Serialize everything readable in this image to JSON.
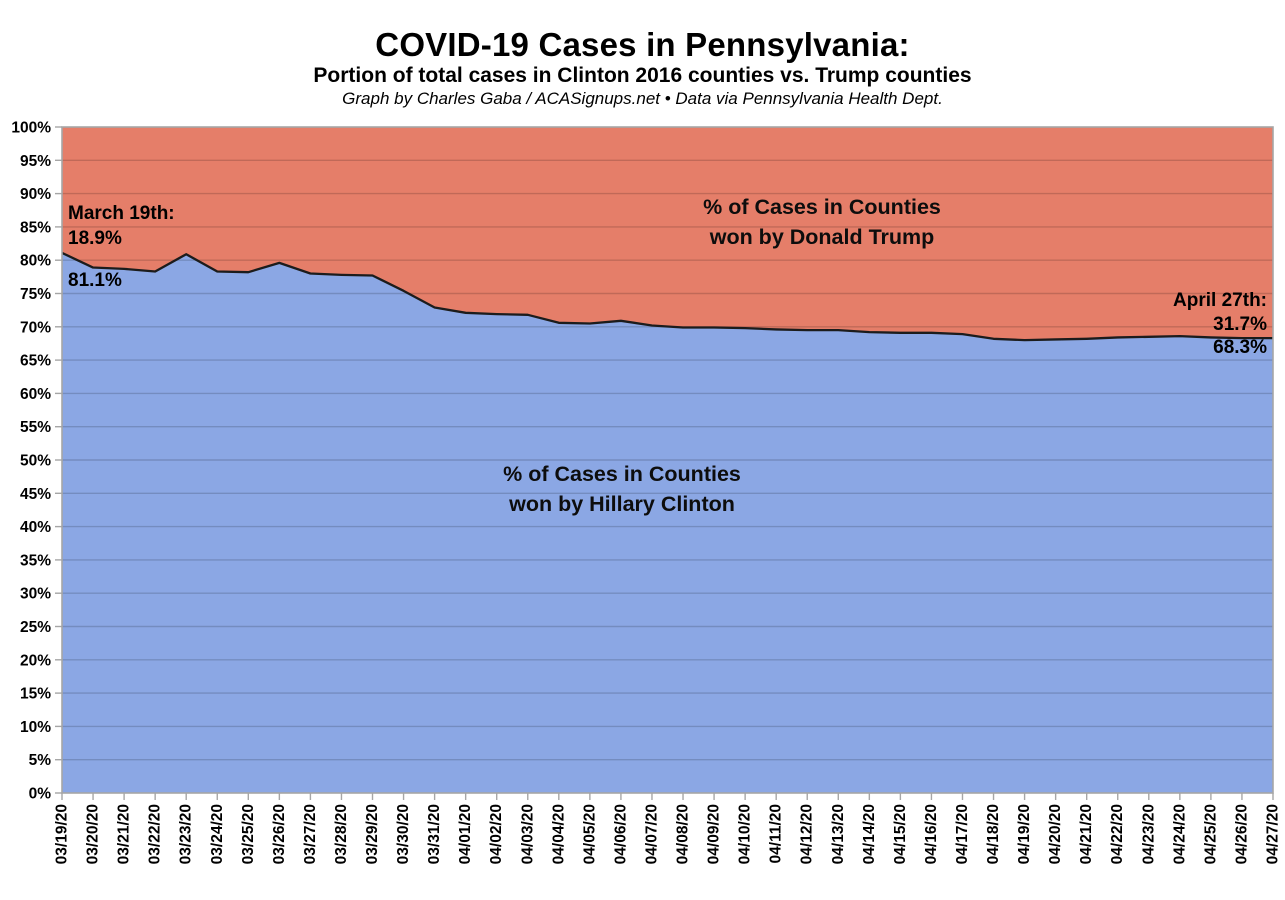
{
  "header": {
    "title": "COVID-19 Cases in Pennsylvania:",
    "subtitle": "Portion of total cases in Clinton 2016 counties vs. Trump counties",
    "credit": "Graph by Charles Gaba / ACASignups.net  •  Data via Pennsylvania Health Dept."
  },
  "annotations": {
    "start_date_label": "March 19th:",
    "start_trump_value": "18.9%",
    "start_clinton_value": "81.1%",
    "end_date_label": "April 27th:",
    "end_trump_value": "31.7%",
    "end_clinton_value": "68.3%",
    "trump_area_line1": "% of Cases in Counties",
    "trump_area_line2": "won by Donald Trump",
    "clinton_area_line1": "% of Cases in Counties",
    "clinton_area_line2": "won by Hillary Clinton"
  },
  "chart_data": {
    "type": "area",
    "stacked": true,
    "title": "COVID-19 Cases in Pennsylvania: Portion of total cases in Clinton 2016 counties vs. Trump counties",
    "x_label": "",
    "y_label": "",
    "x": [
      "03/19/20",
      "03/20/20",
      "03/21/20",
      "03/22/20",
      "03/23/20",
      "03/24/20",
      "03/25/20",
      "03/26/20",
      "03/27/20",
      "03/28/20",
      "03/29/20",
      "03/30/20",
      "03/31/20",
      "04/01/20",
      "04/02/20",
      "04/03/20",
      "04/04/20",
      "04/05/20",
      "04/06/20",
      "04/07/20",
      "04/08/20",
      "04/09/20",
      "04/10/20",
      "04/11/20",
      "04/12/20",
      "04/13/20",
      "04/14/20",
      "04/15/20",
      "04/16/20",
      "04/17/20",
      "04/18/20",
      "04/19/20",
      "04/20/20",
      "04/21/20",
      "04/22/20",
      "04/23/20",
      "04/24/20",
      "04/25/20",
      "04/26/20",
      "04/27/20"
    ],
    "series": [
      {
        "name": "% of Cases in Counties won by Hillary Clinton",
        "color": "#8ba7e4",
        "values": [
          81.1,
          78.9,
          78.7,
          78.3,
          80.9,
          78.3,
          78.2,
          79.6,
          78.0,
          77.8,
          77.7,
          75.4,
          72.9,
          72.1,
          71.9,
          71.8,
          70.6,
          70.5,
          70.9,
          70.2,
          69.9,
          69.9,
          69.8,
          69.6,
          69.5,
          69.5,
          69.2,
          69.1,
          69.1,
          68.9,
          68.2,
          68.0,
          68.1,
          68.2,
          68.4,
          68.5,
          68.6,
          68.4,
          68.3,
          68.3
        ]
      },
      {
        "name": "% of Cases in Counties won by Donald Trump",
        "color": "#e57e69",
        "values": [
          18.9,
          21.1,
          21.3,
          21.7,
          19.1,
          21.7,
          21.8,
          20.4,
          22.0,
          22.2,
          22.3,
          24.6,
          27.1,
          27.9,
          28.1,
          28.2,
          29.4,
          29.5,
          29.1,
          29.8,
          30.1,
          30.1,
          30.2,
          30.4,
          30.5,
          30.5,
          30.8,
          30.9,
          30.9,
          31.1,
          31.8,
          32.0,
          31.9,
          31.8,
          31.6,
          31.5,
          31.4,
          31.6,
          31.7,
          31.7
        ]
      }
    ],
    "ylim": [
      0,
      100
    ],
    "ytick_step": 5,
    "ytick_labels": [
      "0%",
      "5%",
      "10%",
      "15%",
      "20%",
      "25%",
      "30%",
      "35%",
      "40%",
      "45%",
      "50%",
      "55%",
      "60%",
      "65%",
      "70%",
      "75%",
      "80%",
      "85%",
      "90%",
      "95%",
      "100%"
    ],
    "grid": true,
    "legend_position": "none (labels drawn inside areas)",
    "boundary_line_color": "#1c1c1c",
    "axis_color": "#a6a6a6",
    "gridline_overlay": "rgba(0,0,0,0.16)"
  }
}
